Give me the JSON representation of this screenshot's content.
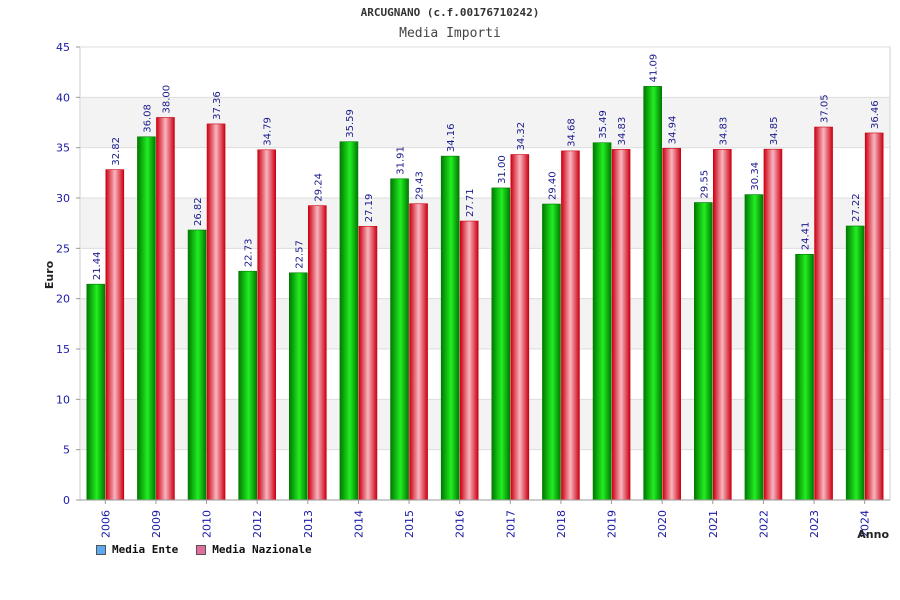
{
  "colors": {
    "ente_dark": "#007a00",
    "ente_light": "#22ee22",
    "naz_dark": "#cc0011",
    "naz_light": "#f8b6c0",
    "legend_ente": "#5da9f0",
    "legend_naz": "#e06d9c"
  },
  "chart_data": {
    "type": "bar",
    "title": "ARCUGNANO (c.f.00176710242)",
    "subtitle": "Media Importi",
    "xlabel": "Anno",
    "ylabel": "Euro",
    "ylim": [
      0,
      45
    ],
    "yticks": [
      "0",
      "5",
      "10",
      "15",
      "20",
      "25",
      "30",
      "35",
      "40",
      "45"
    ],
    "grid": true,
    "categories": [
      "2006",
      "2009",
      "2010",
      "2012",
      "2013",
      "2014",
      "2015",
      "2016",
      "2017",
      "2018",
      "2019",
      "2020",
      "2021",
      "2022",
      "2023",
      "2024"
    ],
    "series": [
      {
        "name": "Media Ente",
        "values": [
          21.44,
          36.08,
          26.82,
          22.73,
          22.57,
          35.59,
          31.91,
          34.16,
          31.0,
          29.4,
          35.49,
          41.09,
          29.55,
          30.34,
          24.41,
          27.22
        ],
        "labels": [
          "21.44",
          "36.08",
          "26.82",
          "22.73",
          "22.57",
          "35.59",
          "31.91",
          "34.16",
          "31.00",
          "29.40",
          "35.49",
          "41.09",
          "29.55",
          "30.34",
          "24.41",
          "27.22"
        ]
      },
      {
        "name": "Media Nazionale",
        "values": [
          32.82,
          38.0,
          37.36,
          34.79,
          29.24,
          27.19,
          29.43,
          27.71,
          34.32,
          34.68,
          34.83,
          34.94,
          34.83,
          34.85,
          37.05,
          36.46
        ],
        "labels": [
          "32.82",
          "38.00",
          "37.36",
          "34.79",
          "29.24",
          "27.19",
          "29.43",
          "27.71",
          "34.32",
          "34.68",
          "34.83",
          "34.94",
          "34.83",
          "34.85",
          "37.05",
          "36.46"
        ]
      }
    ]
  },
  "legend": {
    "ente_label": "Media Ente",
    "naz_label": "Media Nazionale"
  }
}
